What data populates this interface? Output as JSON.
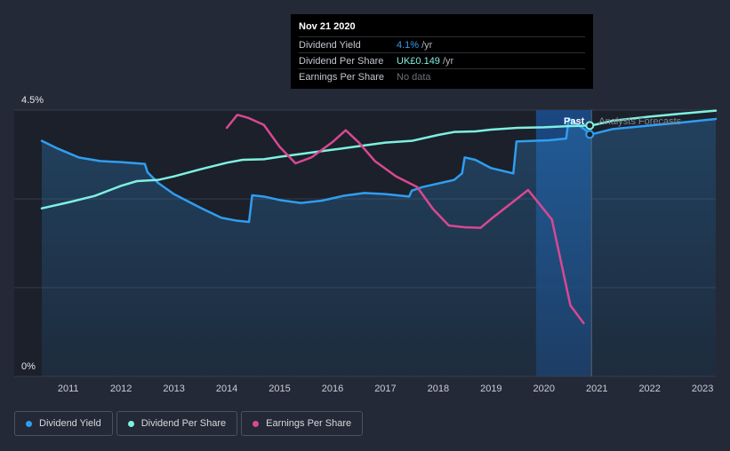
{
  "tooltip": {
    "date": "Nov 21 2020",
    "rows": [
      {
        "label": "Dividend Yield",
        "value": "4.1%",
        "unit": "/yr",
        "color": "#2f9ef0"
      },
      {
        "label": "Dividend Per Share",
        "value": "UK£0.149",
        "unit": "/yr",
        "color": "#7ff0e0"
      },
      {
        "label": "Earnings Per Share",
        "value": "No data",
        "unit": "",
        "color": "#6b7078"
      }
    ]
  },
  "chart_data": {
    "type": "line",
    "title": "",
    "ylabel_top": "4.5%",
    "ylabel_bottom": "0%",
    "ylim": [
      0,
      4.5
    ],
    "xlim": [
      2010.5,
      2023.25
    ],
    "x_ticks": [
      "2011",
      "2012",
      "2013",
      "2014",
      "2015",
      "2016",
      "2017",
      "2018",
      "2019",
      "2020",
      "2021",
      "2022",
      "2023"
    ],
    "past_label": "Past",
    "forecast_label": "Analysts Forecasts",
    "past_forecast_split": 2020.9,
    "highlight_start": 2019.85,
    "series": [
      {
        "name": "Dividend Yield",
        "color": "#2f9ef0",
        "x": [
          2010.5,
          2010.8,
          2011.2,
          2011.6,
          2012.0,
          2012.45,
          2012.5,
          2012.7,
          2013.0,
          2013.5,
          2013.9,
          2014.2,
          2014.42,
          2014.48,
          2014.7,
          2015.0,
          2015.4,
          2015.8,
          2016.2,
          2016.6,
          2017.0,
          2017.45,
          2017.5,
          2017.7,
          2018.0,
          2018.3,
          2018.45,
          2018.5,
          2018.7,
          2019.0,
          2019.42,
          2019.48,
          2019.8,
          2020.1,
          2020.42,
          2020.47,
          2020.9,
          2021.3,
          2022.0,
          2022.6,
          2023.25
        ],
        "y": [
          3.98,
          3.85,
          3.7,
          3.64,
          3.62,
          3.59,
          3.45,
          3.27,
          3.08,
          2.85,
          2.68,
          2.63,
          2.61,
          3.06,
          3.04,
          2.98,
          2.93,
          2.97,
          3.05,
          3.1,
          3.08,
          3.04,
          3.14,
          3.2,
          3.26,
          3.32,
          3.43,
          3.7,
          3.66,
          3.52,
          3.43,
          3.97,
          3.98,
          3.99,
          4.02,
          4.36,
          4.09,
          4.18,
          4.24,
          4.29,
          4.35
        ]
      },
      {
        "name": "Dividend Per Share",
        "color": "#7ff0e0",
        "x": [
          2010.5,
          2011.0,
          2011.5,
          2012.0,
          2012.3,
          2012.7,
          2013.0,
          2013.5,
          2014.0,
          2014.3,
          2014.7,
          2015.0,
          2015.5,
          2016.0,
          2016.5,
          2017.0,
          2017.5,
          2018.0,
          2018.3,
          2018.7,
          2019.0,
          2019.5,
          2020.0,
          2020.5,
          2020.9,
          2021.3,
          2022.0,
          2022.6,
          2023.25
        ],
        "y": [
          2.84,
          2.94,
          3.05,
          3.22,
          3.3,
          3.32,
          3.38,
          3.5,
          3.61,
          3.66,
          3.67,
          3.71,
          3.77,
          3.83,
          3.89,
          3.95,
          3.98,
          4.08,
          4.13,
          4.14,
          4.17,
          4.2,
          4.21,
          4.23,
          4.24,
          4.32,
          4.39,
          4.44,
          4.49
        ]
      },
      {
        "name": "Earnings Per Share",
        "color": "#d94891",
        "x": [
          2014.0,
          2014.2,
          2014.4,
          2014.7,
          2015.0,
          2015.3,
          2015.6,
          2016.0,
          2016.25,
          2016.5,
          2016.8,
          2017.2,
          2017.6,
          2017.9,
          2018.2,
          2018.5,
          2018.8,
          2019.0,
          2019.4,
          2019.7,
          2019.9,
          2020.15,
          2020.5,
          2020.75
        ],
        "y": [
          4.2,
          4.42,
          4.37,
          4.25,
          3.88,
          3.6,
          3.7,
          3.96,
          4.16,
          3.95,
          3.64,
          3.38,
          3.2,
          2.83,
          2.55,
          2.52,
          2.51,
          2.66,
          2.94,
          3.15,
          2.93,
          2.65,
          1.2,
          0.9
        ]
      }
    ]
  },
  "legend": [
    {
      "label": "Dividend Yield",
      "color": "#2f9ef0"
    },
    {
      "label": "Dividend Per Share",
      "color": "#7ff0e0"
    },
    {
      "label": "Earnings Per Share",
      "color": "#d94891"
    }
  ]
}
